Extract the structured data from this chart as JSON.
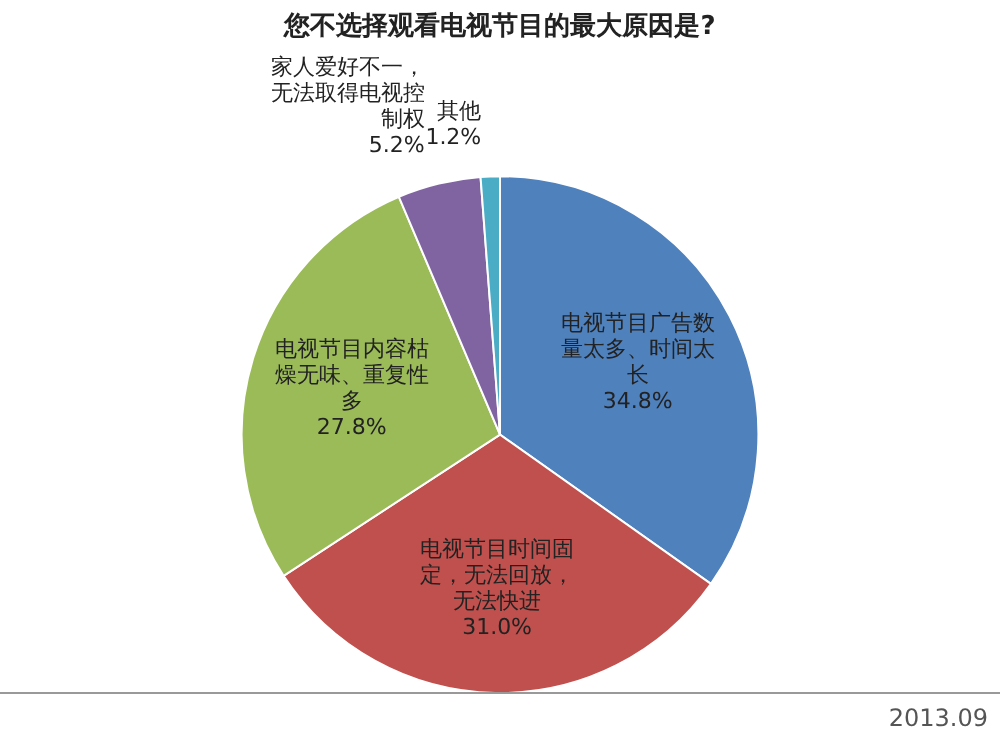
{
  "chart_data": {
    "type": "pie",
    "title": "您不选择观看电视节目的最大原因是?",
    "categories": [
      "电视节目广告数量太多、时间太长",
      "电视节目时间固定，无法回放，无法快进",
      "电视节目内容枯燥无味、重复性多",
      "家人爱好不一，无法取得电视控制权",
      "其他"
    ],
    "values": [
      34.8,
      31.0,
      27.8,
      5.2,
      1.2
    ],
    "colors": [
      "#4f81bd",
      "#c0504d",
      "#9bbb59",
      "#8064a2",
      "#4bacc6"
    ],
    "value_labels": [
      "34.8%",
      "31.0%",
      "27.8%",
      "5.2%",
      "1.2%"
    ],
    "annotations": [
      "2013.09"
    ]
  }
}
